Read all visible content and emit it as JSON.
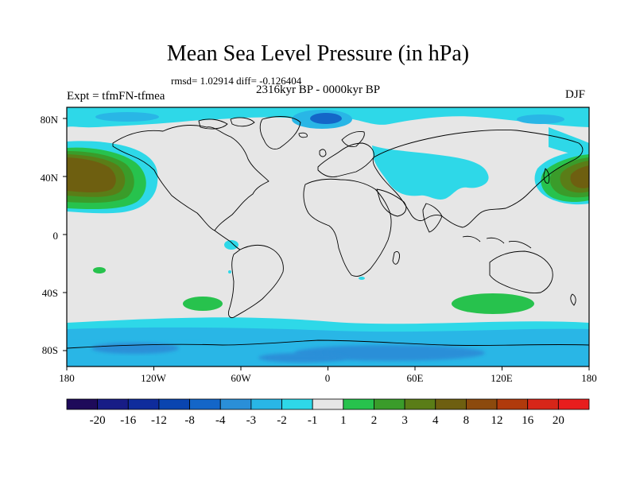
{
  "title": "Mean Sea Level Pressure (in hPa)",
  "stats": "rmsd= 1.02914 diff= -0.126404",
  "experiment": "Expt = tfmFN-tfmea",
  "period": "2316kyr BP - 0000kyr BP",
  "season": "DJF",
  "axes": {
    "lat_labels": [
      "80N",
      "40N",
      "0",
      "40S",
      "80S"
    ],
    "lon_labels": [
      "180",
      "120W",
      "60W",
      "0",
      "60E",
      "120E",
      "180"
    ]
  },
  "colorbar": {
    "labels": [
      "-20",
      "-16",
      "-12",
      "-8",
      "-4",
      "-3",
      "-2",
      "-1",
      "1",
      "2",
      "3",
      "4",
      "8",
      "12",
      "16",
      "20"
    ],
    "colors": [
      "#1e0a5a",
      "#171c86",
      "#0f2c9c",
      "#0a45b0",
      "#1466c8",
      "#2a8fd8",
      "#29b6e6",
      "#2ed8e8",
      "#e6e6e6",
      "#27c24d",
      "#3a9c2a",
      "#5a7d17",
      "#6e5f10",
      "#8c4a0d",
      "#b03a0c",
      "#d72619",
      "#e81d1d"
    ]
  },
  "colors": {
    "neutral": "#e6e6e6",
    "coast": "#000000"
  }
}
